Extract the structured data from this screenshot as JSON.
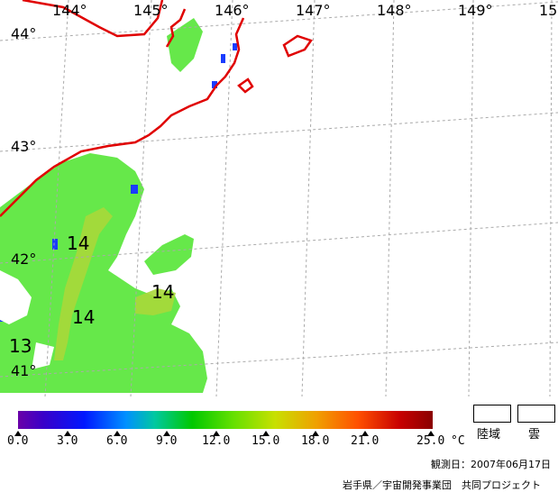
{
  "map": {
    "longitude_labels": [
      "144°",
      "145°",
      "146°",
      "147°",
      "148°",
      "149°",
      "15"
    ],
    "latitude_labels": [
      "44°",
      "43°",
      "42°",
      "41°"
    ],
    "contour_labels": [
      "14",
      "14",
      "14",
      "13"
    ]
  },
  "legend": {
    "scale_labels": [
      "0.0",
      "3.0",
      "6.0",
      "9.0",
      "12.0",
      "15.0",
      "18.0",
      "21.0",
      "25.0"
    ],
    "unit": "°C",
    "land_label": "陸域",
    "cloud_label": "雲"
  },
  "footer": {
    "observation_date": "観測日：2007年06月17日",
    "credit": "岩手県／宇宙開発事業団　共同プロジェクト"
  },
  "colors": {
    "coastline": "#e00000",
    "sst_main": "#4de84d"
  }
}
